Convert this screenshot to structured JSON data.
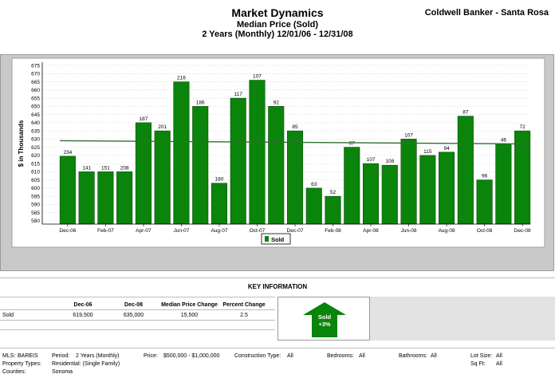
{
  "header": {
    "title": "Market Dynamics",
    "subtitle": "Median Price (Sold)",
    "period": "2 Years (Monthly) 12/01/06 - 12/31/08",
    "company": "Coldwell Banker - Santa Rosa"
  },
  "chart_data": {
    "type": "bar",
    "ylabel": "$ in Thousands",
    "ylim": [
      578,
      677
    ],
    "yticks": [
      580,
      585,
      590,
      595,
      600,
      605,
      610,
      615,
      620,
      625,
      630,
      635,
      640,
      645,
      650,
      655,
      660,
      665,
      670,
      675
    ],
    "xtick_labels": [
      "Dec-06",
      "Feb-07",
      "Apr-07",
      "Jun-07",
      "Aug-07",
      "Oct-07",
      "Dec-07",
      "Feb-08",
      "Apr-08",
      "Jun-08",
      "Aug-08",
      "Oct-08",
      "Dec-08"
    ],
    "categories": [
      "Dec-06",
      "Jan-07",
      "Feb-07",
      "Mar-07",
      "Apr-07",
      "May-07",
      "Jun-07",
      "Jul-07",
      "Aug-07",
      "Sep-07",
      "Oct-07",
      "Nov-07",
      "Dec-07",
      "Jan-08",
      "Feb-08",
      "Mar-08",
      "Apr-08",
      "May-08",
      "Jun-08",
      "Jul-08",
      "Aug-08",
      "Sep-08",
      "Oct-08",
      "Nov-08",
      "Dec-08"
    ],
    "series": [
      {
        "name": "Sold",
        "color": "#0a840a",
        "values": [
          619.5,
          610,
          610,
          610,
          640,
          635,
          665,
          650,
          603,
          655,
          666,
          650,
          635,
          600,
          595,
          625,
          615,
          614,
          630,
          620,
          622,
          644,
          605,
          627,
          635
        ],
        "labels": [
          "234",
          "141",
          "151",
          "208",
          "187",
          "201",
          "216",
          "186",
          "180",
          "117",
          "107",
          "92",
          "85",
          "63",
          "52",
          "67",
          "107",
          "108",
          "107",
          "115",
          "94",
          "87",
          "96",
          "46",
          "72"
        ]
      }
    ],
    "trendline": {
      "color": "#2f6f2f",
      "start": 629,
      "end": 627
    },
    "legend": "bottom-center"
  },
  "key_info": {
    "title": "KEY INFORMATION",
    "headers": [
      "Dec-06",
      "Dec-08",
      "Median Price Change",
      "Percent Change"
    ],
    "row_label": "Sold",
    "values": [
      "619,500",
      "635,000",
      "15,500",
      "2.5"
    ],
    "arrow_label": "Sold",
    "arrow_value": "+3%",
    "arrow_color": "#0a840a"
  },
  "footer": {
    "mls_label": "MLS:",
    "mls_value": "BAREIS",
    "period_label": "Period:",
    "period_value": "2 Years (Monthly)",
    "price_label": "Price:",
    "price_value": "$500,000 - $1,000,000",
    "construction_label": "Construction Type:",
    "construction_value": "All",
    "bedrooms_label": "Bedrooms:",
    "bedrooms_value": "All",
    "bathrooms_label": "Bathrooms:",
    "bathrooms_value": "All",
    "lotsize_label": "Lot Size:",
    "lotsize_value": "All",
    "proptype_label": "Property Types:",
    "proptype_value": "Residential: (Single Family)",
    "sqft_label": "Sq Ft:",
    "sqft_value": "All",
    "counties_label": "Counties:",
    "counties_value": "Sonoma"
  }
}
